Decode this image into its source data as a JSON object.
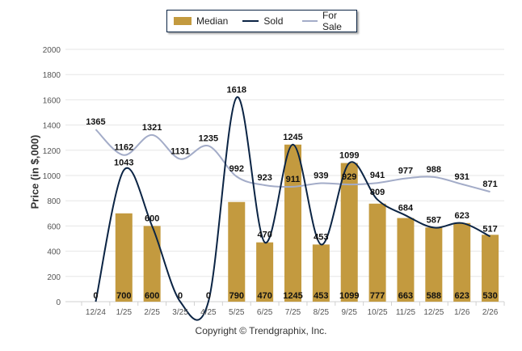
{
  "chart_data": {
    "type": "bar",
    "title": "",
    "xlabel": "",
    "ylabel": "Price (in $,000)",
    "ylim": [
      0,
      2000
    ],
    "yticks": [
      0,
      200,
      400,
      600,
      800,
      1000,
      1200,
      1400,
      1600,
      1800,
      2000
    ],
    "grid": true,
    "legend_position": "top-center",
    "categories": [
      "12/24",
      "1/25",
      "2/25",
      "3/25",
      "4/25",
      "5/25",
      "6/25",
      "7/25",
      "8/25",
      "9/25",
      "10/25",
      "11/25",
      "12/25",
      "1/26",
      "2/26"
    ],
    "series": [
      {
        "name": "Median",
        "kind": "bar",
        "color": "#c39a3f",
        "values": [
          0,
          700,
          600,
          0,
          0,
          790,
          470,
          1245,
          453,
          1099,
          777,
          663,
          588,
          623,
          530
        ]
      },
      {
        "name": "Sold",
        "kind": "line",
        "color": "#0b2444",
        "values": [
          0,
          1043,
          600,
          0,
          0,
          1618,
          470,
          1245,
          453,
          1099,
          809,
          684,
          587,
          623,
          517
        ]
      },
      {
        "name": "For Sale",
        "kind": "line",
        "color": "#a3acc8",
        "values": [
          1365,
          1162,
          1321,
          1131,
          1235,
          992,
          923,
          911,
          939,
          929,
          941,
          977,
          988,
          931,
          871
        ]
      }
    ]
  },
  "legend": {
    "median": "Median",
    "sold": "Sold",
    "for_sale": "For Sale"
  },
  "ylabel": "Price (in $,000)",
  "copyright": "Copyright © Trendgraphix, Inc."
}
